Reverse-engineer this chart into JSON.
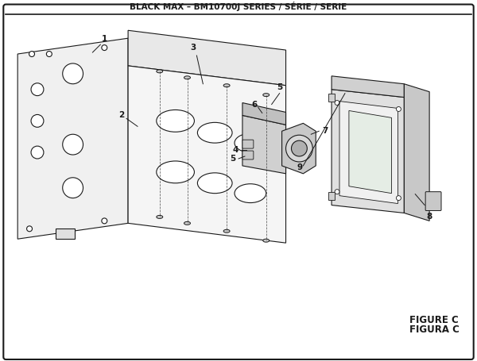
{
  "title": "BLACK MAX – BM10700J SERIES / SÉRIE / SERIE",
  "figure_label": "FIGURE C",
  "figura_label": "FIGURA C",
  "bg_color": "#ffffff",
  "line_color": "#1a1a1a"
}
